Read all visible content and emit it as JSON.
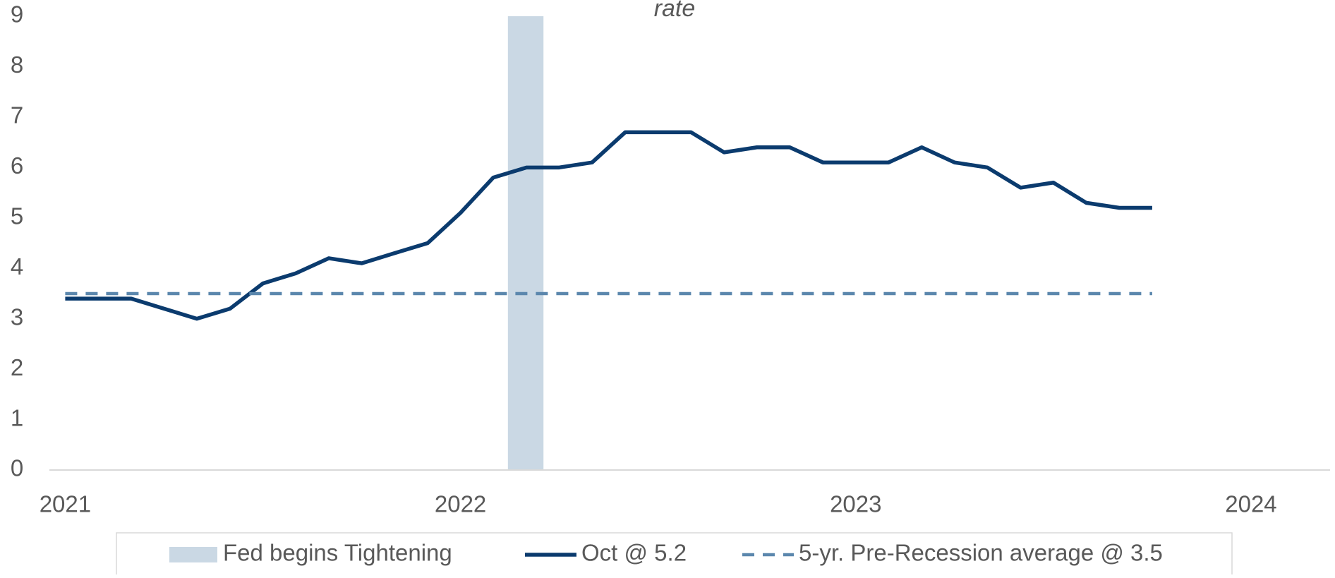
{
  "chart_data": {
    "type": "line",
    "title": "rate",
    "x": [
      2021,
      2021.083,
      2021.167,
      2021.25,
      2021.333,
      2021.417,
      2021.5,
      2021.583,
      2021.667,
      2021.75,
      2021.833,
      2021.917,
      2022,
      2022.083,
      2022.167,
      2022.25,
      2022.333,
      2022.417,
      2022.5,
      2022.583,
      2022.667,
      2022.75,
      2022.833,
      2022.917,
      2023,
      2023.083,
      2023.167,
      2023.25,
      2023.333,
      2023.417,
      2023.5,
      2023.583,
      2023.667,
      2023.75
    ],
    "series": [
      {
        "name": "Oct @ 5.2",
        "color": "#0b3b6e",
        "dash": false,
        "values": [
          3.4,
          3.4,
          3.4,
          3.2,
          3.0,
          3.2,
          3.7,
          3.9,
          4.2,
          4.1,
          4.3,
          4.5,
          5.1,
          5.8,
          6.0,
          6.0,
          6.1,
          6.7,
          6.7,
          6.7,
          6.3,
          6.4,
          6.4,
          6.1,
          6.1,
          6.1,
          6.4,
          6.1,
          6.0,
          5.6,
          5.7,
          5.3,
          5.2,
          5.2
        ]
      },
      {
        "name": "5-yr. Pre-Recession average @ 3.5",
        "color": "#5b87ad",
        "dash": true,
        "x": [
          2021,
          2023.75
        ],
        "values": [
          3.5,
          3.5
        ]
      }
    ],
    "band": {
      "name": "Fed begins Tightening",
      "color": "#cad8e4",
      "xspan": [
        2022.12,
        2022.21
      ]
    },
    "xlim": [
      2020.96,
      2024.2
    ],
    "xticks": [
      2021,
      2022,
      2023,
      2024
    ],
    "ylim": [
      0,
      9
    ],
    "yticks": [
      0,
      1,
      2,
      3,
      4,
      5,
      6,
      7,
      8,
      9
    ],
    "grid": false
  }
}
